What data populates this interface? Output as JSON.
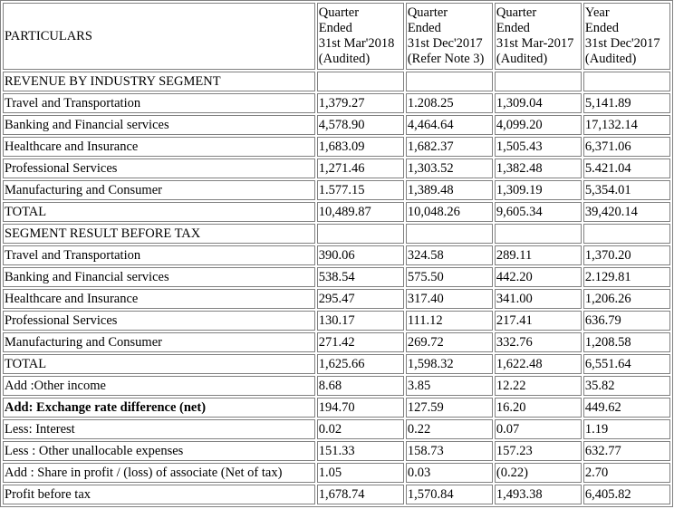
{
  "header": {
    "particulars": "PARTICULARS",
    "columns": [
      [
        "Quarter",
        "Ended",
        "31st Mar'2018",
        "(Audited)"
      ],
      [
        "Quarter",
        "Ended",
        "31st Dec'2017",
        "(Refer Note 3)"
      ],
      [
        "Quarter",
        "Ended",
        "31st Mar-2017",
        "(Audited)"
      ],
      [
        "Year",
        "Ended",
        "31st Dec'2017",
        "(Audited)"
      ]
    ]
  },
  "rows": [
    {
      "label": "REVENUE BY INDUSTRY SEGMENT",
      "values": [
        "",
        "",
        "",
        ""
      ],
      "bold": false
    },
    {
      "label": "Travel and Transportation",
      "values": [
        "1,379.27",
        "1.208.25",
        "1,309.04",
        "5,141.89"
      ],
      "bold": false
    },
    {
      "label": "Banking and Financial services",
      "values": [
        "4,578.90",
        "4,464.64",
        "4,099.20",
        "17,132.14"
      ],
      "bold": false
    },
    {
      "label": "Healthcare and Insurance",
      "values": [
        "1,683.09",
        "1,682.37",
        "1,505.43",
        "6,371.06"
      ],
      "bold": false
    },
    {
      "label": "Professional Services",
      "values": [
        "1,271.46",
        "1,303.52",
        "1,382.48",
        "5.421.04"
      ],
      "bold": false
    },
    {
      "label": "Manufacturing and Consumer",
      "values": [
        "1.577.15",
        "1,389.48",
        "1,309.19",
        "5,354.01"
      ],
      "bold": false
    },
    {
      "label": "TOTAL",
      "values": [
        "10,489.87",
        "10,048.26",
        "9,605.34",
        "39,420.14"
      ],
      "bold": false
    },
    {
      "label": "SEGMENT RESULT BEFORE TAX",
      "values": [
        "",
        "",
        "",
        ""
      ],
      "bold": false
    },
    {
      "label": "Travel and Transportation",
      "values": [
        "390.06",
        "324.58",
        "289.11",
        "1,370.20"
      ],
      "bold": false
    },
    {
      "label": "Banking and Financial services",
      "values": [
        "538.54",
        "575.50",
        "442.20",
        "2.129.81"
      ],
      "bold": false
    },
    {
      "label": "Healthcare and Insurance",
      "values": [
        "295.47",
        "317.40",
        "341.00",
        "1,206.26"
      ],
      "bold": false
    },
    {
      "label": "Professional Services",
      "values": [
        "130.17",
        "111.12",
        "217.41",
        "636.79"
      ],
      "bold": false
    },
    {
      "label": "Manufacturing and Consumer",
      "values": [
        "271.42",
        "269.72",
        "332.76",
        "1,208.58"
      ],
      "bold": false
    },
    {
      "label": "TOTAL",
      "values": [
        "1,625.66",
        "1,598.32",
        "1,622.48",
        "6,551.64"
      ],
      "bold": false
    },
    {
      "label": "Add :Other income",
      "values": [
        "8.68",
        "3.85",
        "12.22",
        "35.82"
      ],
      "bold": false
    },
    {
      "label": "Add: Exchange rate difference (net)",
      "values": [
        "194.70",
        "127.59",
        "16.20",
        "449.62"
      ],
      "bold": true
    },
    {
      "label": "Less: Interest",
      "values": [
        "0.02",
        "0.22",
        "0.07",
        "1.19"
      ],
      "bold": false
    },
    {
      "label": "Less : Other unallocable expenses",
      "values": [
        "151.33",
        "158.73",
        "157.23",
        "632.77"
      ],
      "bold": false
    },
    {
      "label": "Add : Share in profit / (loss) of associate (Net of tax)",
      "values": [
        "1.05",
        "0.03",
        "(0.22)",
        "2.70"
      ],
      "bold": false
    },
    {
      "label": "Profit before tax",
      "values": [
        "1,678.74",
        "1,570.84",
        "1,493.38",
        "6,405.82"
      ],
      "bold": false
    }
  ]
}
